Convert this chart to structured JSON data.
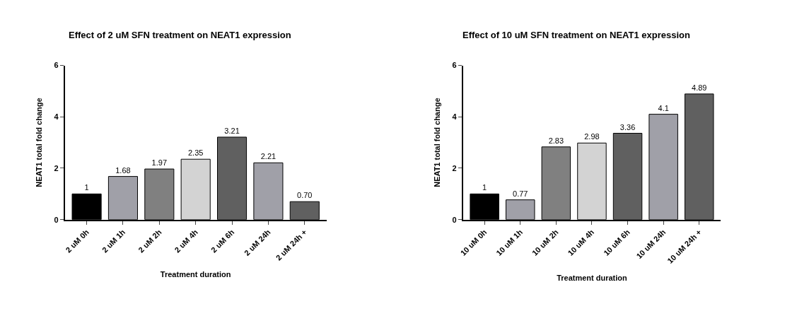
{
  "chart_data": [
    {
      "type": "bar",
      "title": "Effect of 2 uM SFN treatment on NEAT1 expression",
      "xlabel": "Treatment duration",
      "ylabel": "NEAT1 total fold change",
      "categories": [
        "2 uM 0h",
        "2 uM 1h",
        "2 uM 2h",
        "2 uM 4h",
        "2 uM 6h",
        "2 uM 24h",
        "2 uM 24h +"
      ],
      "values": [
        1,
        1.68,
        1.97,
        2.35,
        3.21,
        2.21,
        0.7
      ],
      "value_labels": [
        "1",
        "1.68",
        "1.97",
        "2.35",
        "3.21",
        "2.21",
        "0.70"
      ],
      "colors": [
        "#000000",
        "#a0a0a8",
        "#808080",
        "#d3d3d3",
        "#606060",
        "#a0a0a8",
        "#606060"
      ],
      "ylim": [
        0,
        6
      ],
      "yticks": [
        0,
        2,
        4,
        6
      ]
    },
    {
      "type": "bar",
      "title": "Effect of 10 uM SFN treatment on NEAT1 expression",
      "xlabel": "Treatment duration",
      "ylabel": "NEAT1 total fold change",
      "categories": [
        "10 uM 0h",
        "10 uM 1h",
        "10 uM 2h",
        "10 uM 4h",
        "10 uM 6h",
        "10 uM 24h",
        "10 uM 24h +"
      ],
      "values": [
        1,
        0.77,
        2.83,
        2.98,
        3.36,
        4.1,
        4.89
      ],
      "value_labels": [
        "1",
        "0.77",
        "2.83",
        "2.98",
        "3.36",
        "4.1",
        "4.89"
      ],
      "colors": [
        "#000000",
        "#a0a0a8",
        "#808080",
        "#d3d3d3",
        "#606060",
        "#a0a0a8",
        "#606060"
      ],
      "ylim": [
        0,
        6
      ],
      "yticks": [
        0,
        2,
        4,
        6
      ]
    }
  ]
}
